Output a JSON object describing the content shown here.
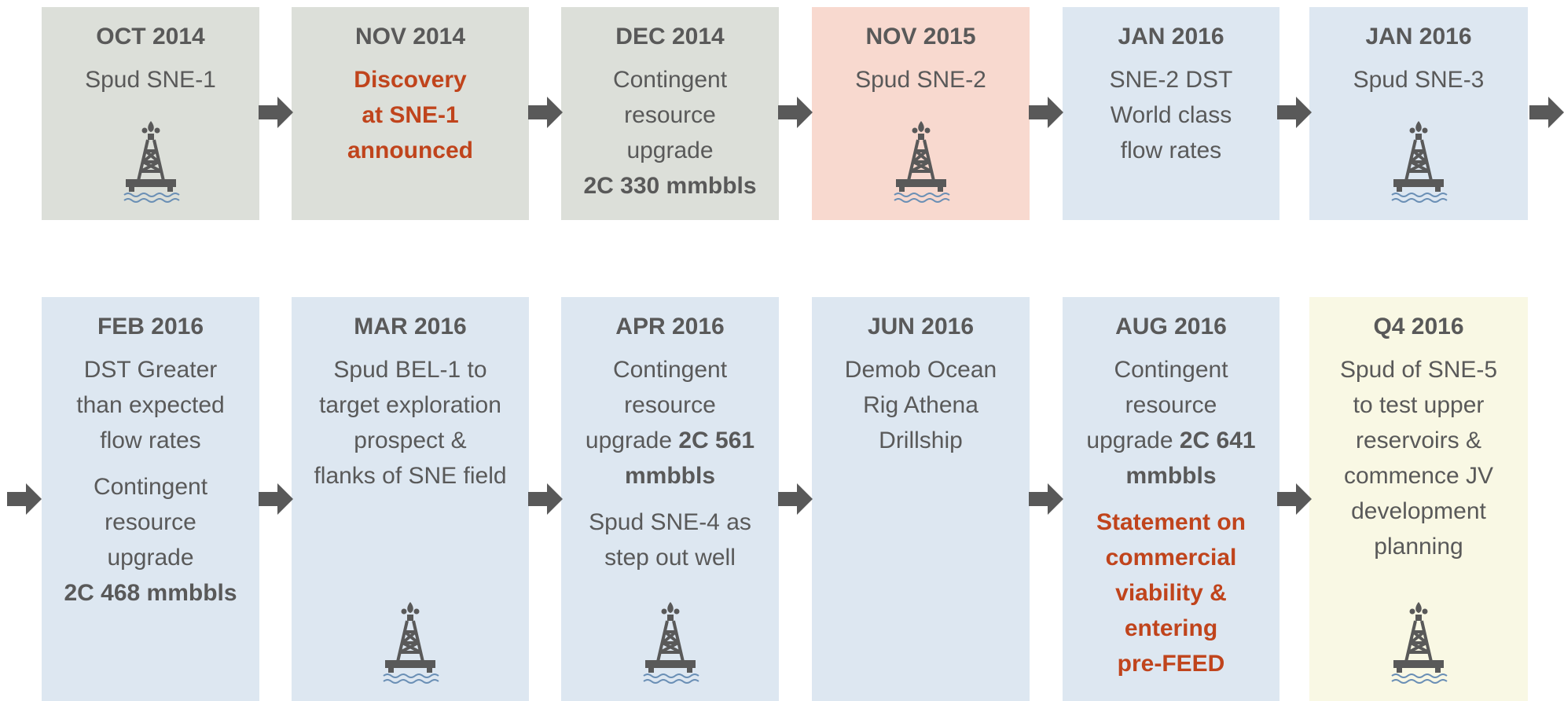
{
  "rows": [
    [
      {
        "date": "OCT 2014",
        "color": "#dcdfd9",
        "icon": true,
        "paragraphs": [
          [
            [
              "Spud SNE-1"
            ]
          ]
        ]
      },
      {
        "date": "NOV 2014",
        "color": "#dcdfd9",
        "icon": false,
        "paragraphs": [
          [
            [
              {
                "text": "Discovery",
                "style": "red"
              }
            ],
            [
              {
                "text": "at SNE-1",
                "style": "red"
              }
            ],
            [
              {
                "text": "announced",
                "style": "red"
              }
            ]
          ]
        ]
      },
      {
        "date": "DEC 2014",
        "color": "#dcdfd9",
        "icon": false,
        "paragraphs": [
          [
            [
              "Contingent"
            ],
            [
              "resource"
            ],
            [
              "upgrade"
            ],
            [
              {
                "text": "2C 330 mmbbls",
                "style": "bold"
              }
            ]
          ]
        ]
      },
      {
        "date": "NOV 2015",
        "color": "#f8d9cf",
        "icon": true,
        "paragraphs": [
          [
            [
              "Spud SNE-2"
            ]
          ]
        ]
      },
      {
        "date": "JAN 2016",
        "color": "#dde7f1",
        "icon": false,
        "paragraphs": [
          [
            [
              "SNE-2 DST"
            ],
            [
              "World class"
            ],
            [
              "flow rates"
            ]
          ]
        ]
      },
      {
        "date": "JAN 2016",
        "color": "#dde7f1",
        "icon": true,
        "paragraphs": [
          [
            [
              "Spud SNE-3"
            ]
          ]
        ]
      }
    ],
    [
      {
        "date": "FEB 2016",
        "color": "#dde7f1",
        "icon": false,
        "paragraphs": [
          [
            [
              "DST Greater"
            ],
            [
              "than expected"
            ],
            [
              "flow rates"
            ]
          ],
          [
            [
              "Contingent"
            ],
            [
              "resource"
            ],
            [
              "upgrade"
            ],
            [
              {
                "text": "2C 468 mmbbls",
                "style": "bold"
              }
            ]
          ]
        ]
      },
      {
        "date": "MAR 2016",
        "color": "#dde7f1",
        "icon": true,
        "paragraphs": [
          [
            [
              "Spud BEL-1 to"
            ],
            [
              "target exploration"
            ],
            [
              "prospect &"
            ],
            [
              "flanks of SNE field"
            ]
          ]
        ]
      },
      {
        "date": "APR 2016",
        "color": "#dde7f1",
        "icon": true,
        "paragraphs": [
          [
            [
              "Contingent"
            ],
            [
              "resource"
            ],
            [
              "upgrade ",
              {
                "text": "2C 561",
                "style": "bold"
              }
            ],
            [
              {
                "text": "mmbbls",
                "style": "bold"
              }
            ]
          ],
          [
            [
              "Spud SNE-4 as"
            ],
            [
              "step out well"
            ]
          ]
        ]
      },
      {
        "date": "JUN 2016",
        "color": "#dde7f1",
        "icon": false,
        "paragraphs": [
          [
            [
              "Demob Ocean"
            ],
            [
              "Rig Athena"
            ],
            [
              "Drillship"
            ]
          ]
        ]
      },
      {
        "date": "AUG 2016",
        "color": "#dde7f1",
        "icon": false,
        "paragraphs": [
          [
            [
              "Contingent"
            ],
            [
              "resource"
            ],
            [
              "upgrade ",
              {
                "text": "2C 641",
                "style": "bold"
              }
            ],
            [
              {
                "text": "mmbbls",
                "style": "bold"
              }
            ]
          ],
          [
            [
              {
                "text": "Statement on",
                "style": "red"
              }
            ],
            [
              {
                "text": "commercial",
                "style": "red"
              }
            ],
            [
              {
                "text": "viability &",
                "style": "red"
              }
            ],
            [
              {
                "text": "entering",
                "style": "red"
              }
            ],
            [
              {
                "text": "pre-FEED",
                "style": "red"
              }
            ]
          ]
        ]
      },
      {
        "date": "Q4 2016",
        "color": "#f9f8e4",
        "icon": true,
        "paragraphs": [
          [
            [
              "Spud of SNE-5"
            ],
            [
              "to test upper"
            ],
            [
              "reservoirs &"
            ],
            [
              "commence JV"
            ],
            [
              "development"
            ],
            [
              "planning"
            ]
          ]
        ]
      }
    ]
  ]
}
